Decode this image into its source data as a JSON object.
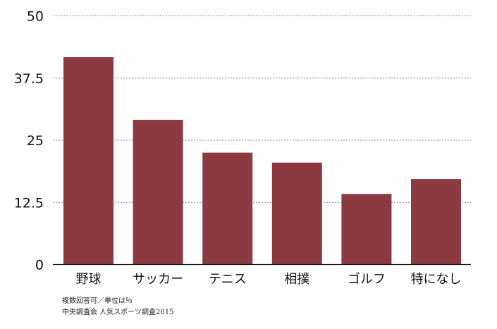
{
  "chart_data": {
    "type": "bar",
    "categories": [
      "野球",
      "サッカー",
      "テニス",
      "相撲",
      "ゴルフ",
      "特になし"
    ],
    "values": [
      41.7,
      29.1,
      22.5,
      20.5,
      14.2,
      17.2
    ],
    "ylim": [
      0,
      50
    ],
    "yticks": [
      "0",
      "12.5",
      "25",
      "37.5",
      "50"
    ],
    "grid": true,
    "bar_color": "#8b3a42",
    "grid_color": "#888888"
  },
  "notes": {
    "line1": "複数回答可／単位は％",
    "line2": "中央調査会 人気スポーツ調査2015"
  }
}
